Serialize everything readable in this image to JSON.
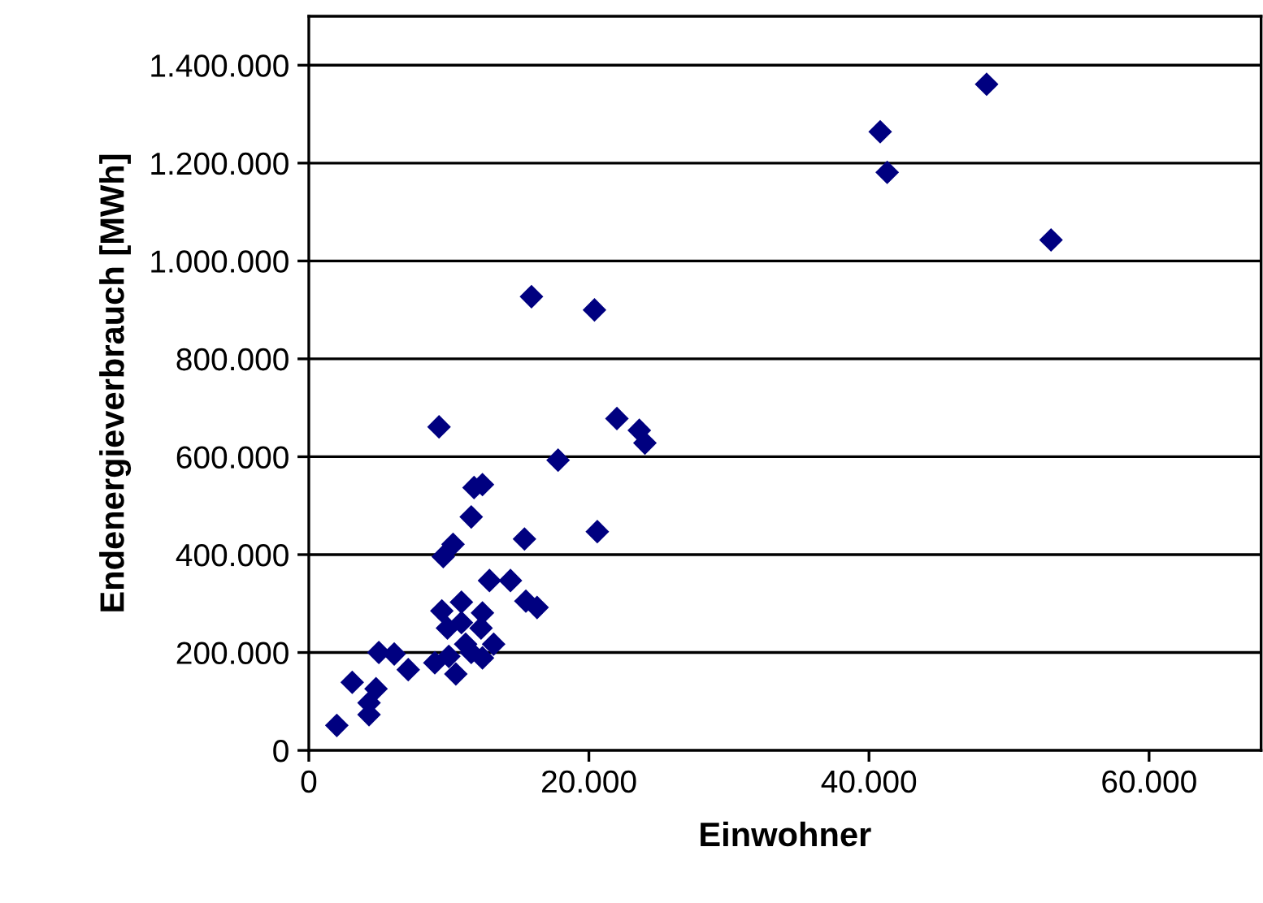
{
  "chart_data": {
    "type": "scatter",
    "xlabel": "Einwohner",
    "ylabel": "Endenergieverbrauch [MWh]",
    "marker": "diamond",
    "grid": "y",
    "xlim": [
      0,
      68000
    ],
    "ylim": [
      0,
      1500000
    ],
    "xticks": [
      0,
      {
        "value": 20000,
        "label": "20.000"
      },
      {
        "value": 40000,
        "label": "40.000"
      },
      {
        "value": 60000,
        "label": "60.000"
      }
    ],
    "yticks": [
      0,
      {
        "value": 200000,
        "label": "200.000"
      },
      {
        "value": 400000,
        "label": "400.000"
      },
      {
        "value": 600000,
        "label": "600.000"
      },
      {
        "value": 800000,
        "label": "800.000"
      },
      {
        "value": 1000000,
        "label": "1.000.000"
      },
      {
        "value": 1200000,
        "label": "1.200.000"
      },
      {
        "value": 1400000,
        "label": "1.400.000"
      }
    ],
    "series": [
      {
        "color": "#000080",
        "x": [
          9300,
          17800,
          11800,
          12400,
          11600,
          15400,
          20600,
          10300,
          9600,
          12900,
          14400,
          15500,
          16300,
          9500,
          10900,
          12400,
          9900,
          10900,
          12300,
          5000,
          6100,
          7100,
          9000,
          10000,
          11200,
          10500,
          11600,
          12400,
          13200,
          3100,
          4800,
          4300,
          4300,
          2000,
          15900,
          20400,
          22000,
          23600,
          24000,
          48400,
          40800,
          41300,
          53000
        ],
        "values": [
          661000,
          593000,
          537000,
          543000,
          477000,
          432000,
          447000,
          421000,
          396000,
          347000,
          347000,
          305000,
          292000,
          285000,
          303000,
          281000,
          250000,
          261000,
          250000,
          200000,
          197000,
          165000,
          179000,
          192000,
          217000,
          156000,
          200000,
          189000,
          217000,
          139000,
          126000,
          97000,
          73000,
          51000,
          927000,
          900000,
          678000,
          654000,
          628000,
          1361000,
          1264000,
          1181000,
          1043000
        ]
      }
    ]
  }
}
